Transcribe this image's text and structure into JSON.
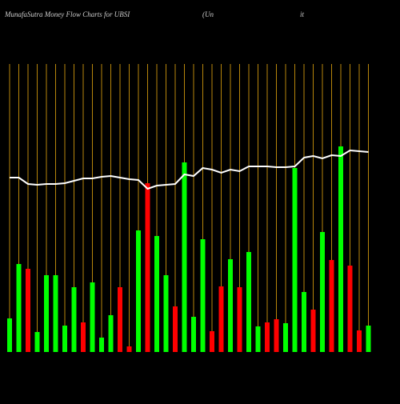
{
  "chart_data": {
    "type": "bar",
    "title": "MunafaSutra  Money Flow  Charts for UBSI",
    "subtitle": "(Un",
    "subtitle_end": "it",
    "categories": [
      null,
      null,
      null,
      null,
      null,
      null,
      null,
      null,
      null,
      null,
      null,
      null,
      null,
      null,
      null,
      null,
      null,
      null,
      null,
      null,
      null,
      null,
      null,
      null,
      null,
      null,
      null,
      null,
      null,
      null,
      null,
      null,
      null,
      null,
      null,
      null,
      null,
      null,
      null,
      null
    ],
    "series": [
      {
        "type": "bar",
        "values": [
          42,
          110,
          104,
          25,
          96,
          96,
          33,
          81,
          37,
          87,
          18,
          46,
          81,
          7,
          152,
          211,
          145,
          96,
          57,
          237,
          44,
          141,
          26,
          82,
          116,
          81,
          125,
          32,
          37,
          41,
          36,
          230,
          75,
          53,
          150,
          115,
          257,
          108,
          27,
          33
        ],
        "colors": [
          "#00ff00",
          "#00ff00",
          "#ff0000",
          "#00ff00",
          "#00ff00",
          "#00ff00",
          "#00ff00",
          "#00ff00",
          "#ff0000",
          "#00ff00",
          "#00ff00",
          "#00ff00",
          "#ff0000",
          "#ff0000",
          "#00ff00",
          "#ff0000",
          "#00ff00",
          "#00ff00",
          "#ff0000",
          "#00ff00",
          "#00ff00",
          "#00ff00",
          "#ff0000",
          "#ff0000",
          "#00ff00",
          "#ff0000",
          "#00ff00",
          "#00ff00",
          "#ff0000",
          "#ff0000",
          "#00ff00",
          "#00ff00",
          "#00ff00",
          "#ff0000",
          "#00ff00",
          "#ff0000",
          "#00ff00",
          "#ff0000",
          "#ff0000",
          "#00ff00"
        ]
      },
      {
        "type": "line",
        "color": "#ffffff",
        "values": [
          218,
          218,
          210,
          209,
          210,
          210,
          211,
          214,
          217,
          217,
          219,
          220,
          218,
          216,
          215,
          204,
          208,
          209,
          210,
          222,
          220,
          230,
          228,
          224,
          228,
          226,
          232,
          232,
          232,
          231,
          231,
          232,
          243,
          245,
          242,
          246,
          245,
          252,
          251,
          250
        ]
      }
    ],
    "ylim": [
      0,
      360
    ],
    "grid_color": "#b8860b",
    "background": "#000000"
  }
}
